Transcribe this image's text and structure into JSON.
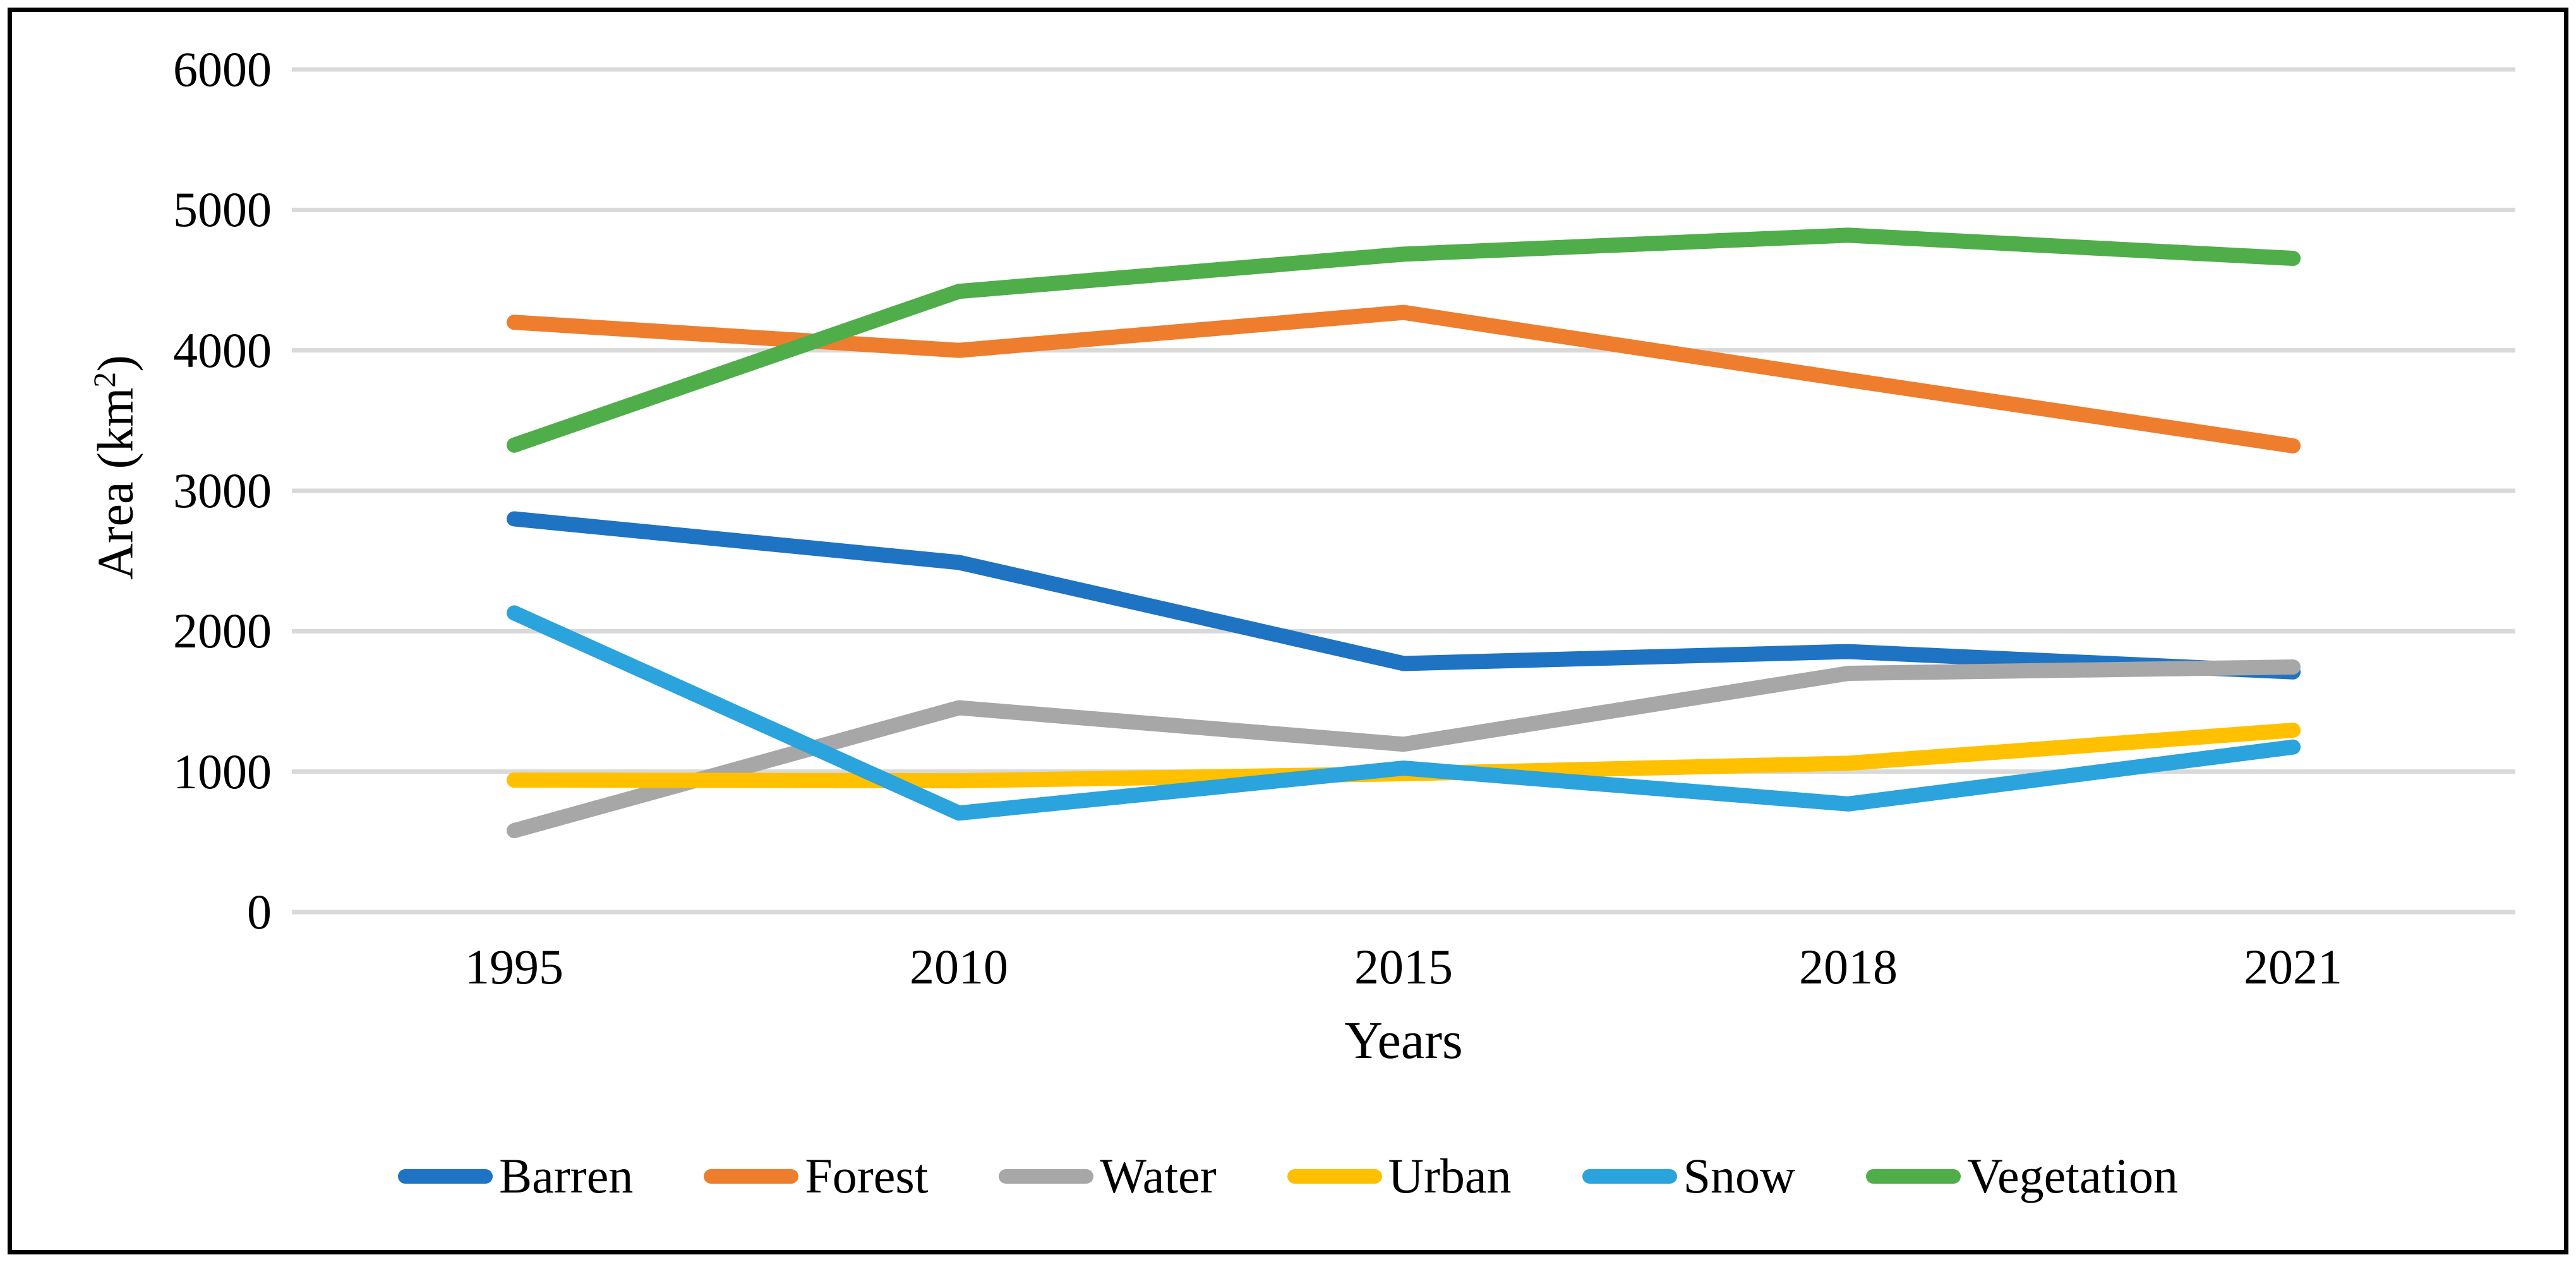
{
  "figure": {
    "y_axis_title_pre": "Area (km",
    "y_axis_title_sup": "2",
    "y_axis_title_post": ")",
    "x_axis_title": "Years"
  },
  "colors": {
    "grid": "#D9D9D9",
    "frame": "#000000",
    "background": "#FFFFFF"
  },
  "chart_data": {
    "type": "line",
    "title": "",
    "xlabel": "Years",
    "ylabel": "Area (km²)",
    "categories": [
      "1995",
      "2010",
      "2015",
      "2018",
      "2021"
    ],
    "series": [
      {
        "name": "Barren",
        "color": "#1E73C2",
        "values": [
          2800,
          2490,
          1770,
          1855,
          1710
        ]
      },
      {
        "name": "Forest",
        "color": "#EE7D2E",
        "values": [
          4200,
          4000,
          4270,
          3790,
          3320
        ]
      },
      {
        "name": "Water",
        "color": "#A7A7A7",
        "values": [
          580,
          1455,
          1195,
          1700,
          1745
        ]
      },
      {
        "name": "Urban",
        "color": "#FFC000",
        "values": [
          940,
          935,
          985,
          1060,
          1295
        ]
      },
      {
        "name": "Snow",
        "color": "#2BA3DC",
        "values": [
          2130,
          705,
          1025,
          770,
          1175
        ]
      },
      {
        "name": "Vegetation",
        "color": "#4FAD4A",
        "values": [
          3325,
          4420,
          4685,
          4820,
          4655
        ]
      }
    ],
    "ylim": [
      0,
      6000
    ],
    "ytick_step": 1000,
    "yticks": [
      0,
      1000,
      2000,
      3000,
      4000,
      5000,
      6000
    ],
    "grid": true,
    "line_width": 24,
    "legend_position": "bottom",
    "legend": [
      "Barren",
      "Forest",
      "Water",
      "Urban",
      "Snow",
      "Vegetation"
    ]
  }
}
